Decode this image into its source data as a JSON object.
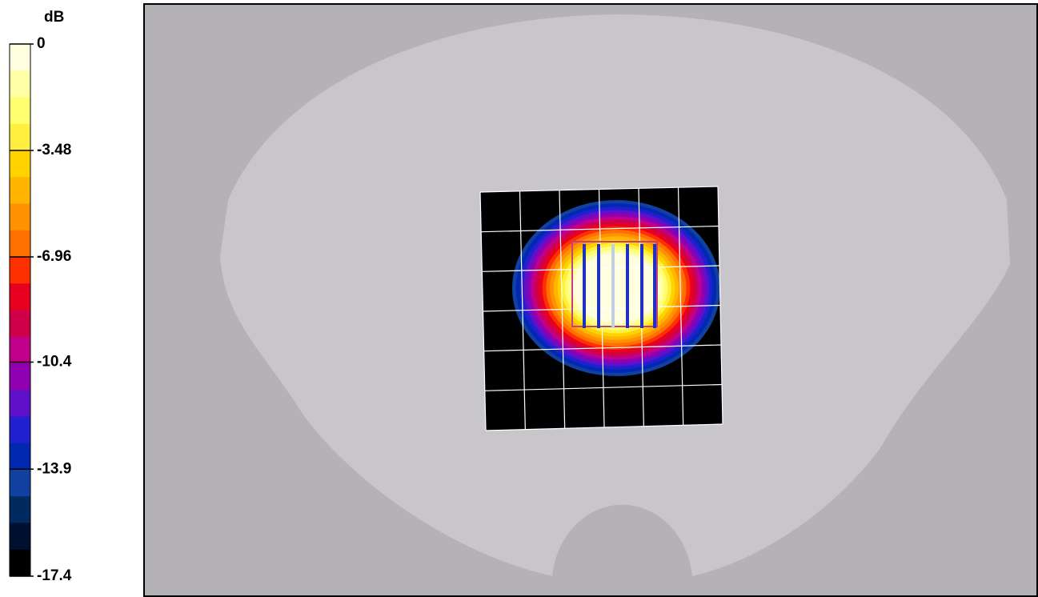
{
  "colorbar": {
    "unit": "dB",
    "lim": [
      -17.4,
      0
    ],
    "ticks": [
      0,
      -3.48,
      -6.96,
      -10.4,
      -13.9,
      -17.4
    ],
    "colors": [
      "#ffffe0",
      "#ffffa8",
      "#ffff70",
      "#fff040",
      "#ffd200",
      "#ffb400",
      "#ff9200",
      "#ff7000",
      "#ff3000",
      "#e80020",
      "#d00048",
      "#c00088",
      "#9000b0",
      "#6010c8",
      "#2020d0",
      "#0028b0",
      "#1040a0",
      "#002a60",
      "#001030",
      "#000000"
    ]
  }
}
